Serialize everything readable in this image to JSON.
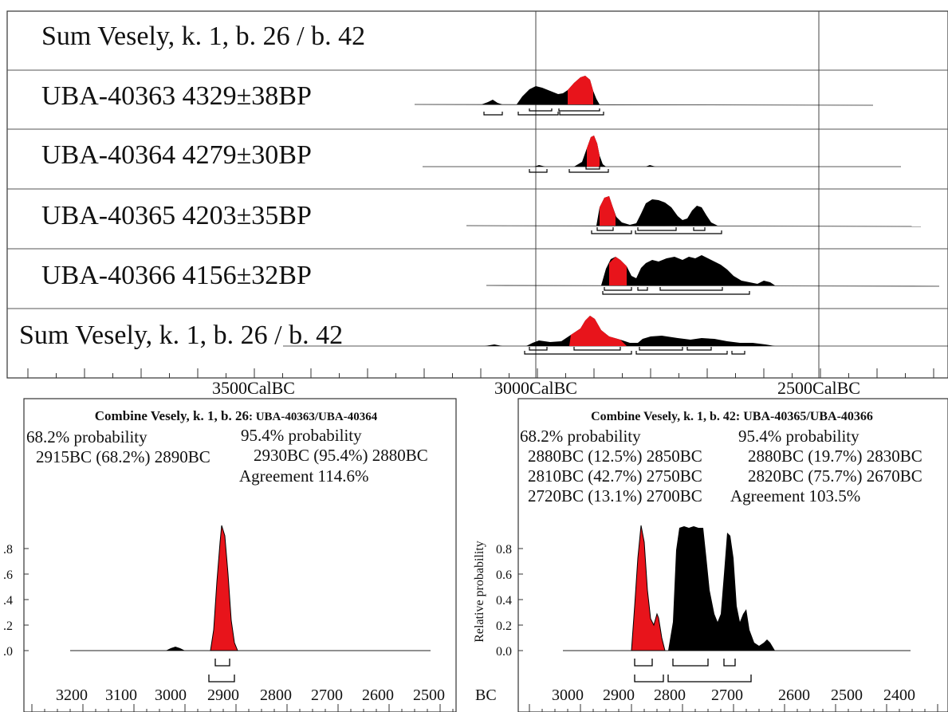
{
  "top_panel": {
    "rows": [
      {
        "label": "Sum Vesely, k. 1, b. 26 / b. 42"
      },
      {
        "label": "UBA-40363  4329±38BP"
      },
      {
        "label": "UBA-40364  4279±30BP"
      },
      {
        "label": "UBA-40365  4203±35BP"
      },
      {
        "label": "UBA-40366  4156±32BP"
      },
      {
        "label": "Sum Vesely, k. 1, b. 26 / b. 42"
      }
    ],
    "axis_labels": [
      "3500CalBC",
      "3000CalBC",
      "2500CalBC"
    ]
  },
  "left_panel": {
    "title_bold": "Combine Vesely, k. 1, b. 26",
    "title_rest": ": UBA-40363/UBA-40364",
    "prob68_header": "68.2% probability",
    "prob95_header": "95.4% probability",
    "prob68_lines": [
      "2915BC (68.2%) 2890BC"
    ],
    "prob95_lines": [
      "2930BC (95.4%) 2880BC"
    ],
    "agreement": "Agreement 114.6%",
    "ytick_labels": [
      ".8",
      ".6",
      ".4",
      ".2",
      ".0"
    ],
    "xtick_labels": [
      "3200",
      "3100",
      "3000",
      "2900",
      "2800",
      "2700",
      "2600",
      "2500"
    ]
  },
  "right_panel": {
    "title": "Combine Vesely, k. 1, b. 42: UBA-40365/UBA-40366",
    "prob68_header": "68.2% probability",
    "prob95_header": "95.4% probability",
    "prob68_lines": [
      "2880BC (12.5%) 2850BC",
      "2810BC (42.7%) 2750BC",
      "2720BC (13.1%) 2700BC"
    ],
    "prob95_lines": [
      "2880BC (19.7%) 2830BC",
      "2820BC (75.7%) 2670BC"
    ],
    "agreement": "Agreement 103.5%",
    "ylabel": "Relative probability",
    "unit": "BC",
    "ytick_labels": [
      "0.8",
      "0.6",
      "0.4",
      "0.2",
      "0.0"
    ],
    "xtick_labels": [
      "3000",
      "2900",
      "2800",
      "2700",
      "2600",
      "2500",
      "2400"
    ]
  },
  "colors": {
    "posterior": "#e8141b",
    "likelihood": "#000000",
    "frame": "#333333"
  },
  "chart_data": [
    {
      "type": "area",
      "title": "",
      "xlabel": "",
      "ylabel": "",
      "xlim": [
        3900,
        2260
      ],
      "x_axis_ticks": [
        3500,
        3000,
        2500
      ],
      "series": [
        {
          "name": "UBA-40363  4329±38BP",
          "x": [
            3090,
            3070,
            3050,
            3020,
            3000,
            2980,
            2960,
            2940,
            2920,
            2905,
            2895,
            2880
          ],
          "y": [
            0.0,
            0.25,
            0.05,
            0.45,
            0.6,
            0.5,
            0.45,
            0.5,
            0.85,
            1.0,
            0.55,
            0.0
          ]
        },
        {
          "name": "UBA-40364  4279±30BP",
          "x": [
            3010,
            2960,
            2940,
            2925,
            2910,
            2895,
            2880
          ],
          "y": [
            0.0,
            0.05,
            0.1,
            0.8,
            1.0,
            0.7,
            0.0
          ]
        },
        {
          "name": "UBA-40365  4203±35BP",
          "x": [
            2920,
            2905,
            2890,
            2875,
            2860,
            2840,
            2820,
            2800,
            2780,
            2760,
            2740,
            2720,
            2700,
            2680
          ],
          "y": [
            0.0,
            0.85,
            1.0,
            0.5,
            0.15,
            0.05,
            0.9,
            0.95,
            0.85,
            0.75,
            0.3,
            0.7,
            0.2,
            0.0
          ]
        },
        {
          "name": "UBA-40366  4156±32BP",
          "x": [
            2900,
            2880,
            2870,
            2855,
            2840,
            2820,
            2800,
            2780,
            2760,
            2740,
            2720,
            2700,
            2680,
            2660,
            2640
          ],
          "y": [
            0.0,
            0.8,
            0.9,
            0.7,
            0.25,
            0.8,
            0.85,
            0.8,
            0.85,
            0.8,
            0.85,
            0.75,
            0.45,
            0.15,
            0.0
          ]
        },
        {
          "name": "Sum Vesely, k. 1, b. 26 / b. 42",
          "x": [
            3040,
            3000,
            2960,
            2930,
            2910,
            2895,
            2875,
            2840,
            2810,
            2780,
            2750,
            2720,
            2690,
            2660,
            2640
          ],
          "y": [
            0.0,
            0.2,
            0.1,
            0.4,
            1.0,
            0.6,
            0.1,
            0.05,
            0.3,
            0.3,
            0.3,
            0.25,
            0.12,
            0.06,
            0.0
          ]
        }
      ]
    },
    {
      "type": "area",
      "title": "Combine Vesely, k. 1, b. 26: UBA-40363/UBA-40364",
      "xlabel": "",
      "ylabel": "",
      "xlim": [
        3250,
        2450
      ],
      "ylim": [
        0,
        1
      ],
      "x": [
        3000,
        2990,
        2980,
        2950,
        2925,
        2915,
        2905,
        2902,
        2898,
        2890,
        2880,
        2870
      ],
      "y": [
        0.0,
        0.02,
        0.04,
        0.0,
        0.0,
        0.3,
        0.9,
        1.0,
        0.8,
        0.3,
        0.05,
        0.0
      ]
    },
    {
      "type": "area",
      "title": "Combine Vesely, k. 1, b. 42: UBA-40365/UBA-40366",
      "xlabel": "BC",
      "ylabel": "Relative probability",
      "xlim": [
        3050,
        2350
      ],
      "ylim": [
        0,
        1
      ],
      "x": [
        2895,
        2880,
        2870,
        2860,
        2850,
        2840,
        2830,
        2810,
        2790,
        2770,
        2750,
        2735,
        2720,
        2712,
        2700,
        2690,
        2680,
        2670,
        2660,
        2650
      ],
      "y": [
        0.0,
        1.0,
        0.55,
        0.3,
        0.15,
        0.0,
        0.95,
        1.0,
        1.0,
        0.8,
        0.35,
        0.25,
        0.5,
        0.95,
        0.3,
        0.18,
        0.3,
        0.1,
        0.06,
        0.0
      ]
    }
  ]
}
